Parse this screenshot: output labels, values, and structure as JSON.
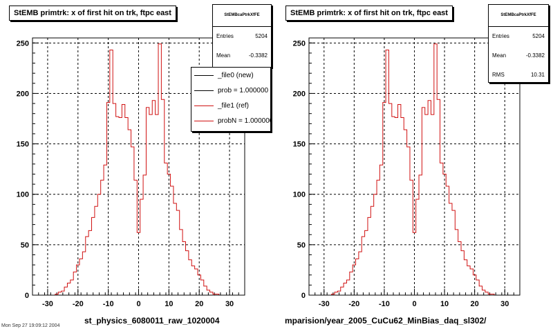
{
  "panels": [
    {
      "title": "StEMB primtrk: x of first hit on trk, ftpc east",
      "stats": {
        "name": "StEMBcaPtrkXfFE",
        "entries_label": "Entries",
        "entries": "5204",
        "mean_label": "Mean",
        "mean": "-0.3382"
      },
      "legend": [
        {
          "label": "_file0 (new)",
          "color": "#000000"
        },
        {
          "label": "prob = 1.000000",
          "color": "#000000"
        },
        {
          "label": "_file1 (ref)",
          "color": "#d01010"
        },
        {
          "label": "probN = 1.000000",
          "color": "#d01010"
        }
      ],
      "caption": "st_physics_6080011_raw_1020004"
    },
    {
      "title": "StEMB primtrk: x of first hit on trk, ftpc east",
      "stats": {
        "name": "StEMBcaPtrkXfFE",
        "entries_label": "Entries",
        "entries": "5204",
        "mean_label": "Mean",
        "mean": "-0.3382",
        "rms_label": "RMS",
        "rms": "10.31"
      },
      "caption": "mparision/year_2005_CuCu62_MinBias_daq_sl302/"
    }
  ],
  "corner_text": "Mon Sep 27 19:09:12 2004",
  "colors": {
    "histogram": "#d01010",
    "frame": "#000000",
    "grid": "#000000"
  },
  "chart_data": {
    "type": "line",
    "x_tick_labels": [
      "-30",
      "-20",
      "-10",
      "0",
      "10",
      "20",
      "30"
    ],
    "y_tick_labels": [
      "0",
      "50",
      "100",
      "150",
      "200",
      "250"
    ],
    "xlim": [
      -35,
      35
    ],
    "ylim": [
      0,
      255
    ],
    "grid": true,
    "bin_width": 1,
    "x": [
      -31,
      -30,
      -29,
      -28,
      -27,
      -26,
      -25,
      -24,
      -23,
      -22,
      -21,
      -20,
      -19,
      -18,
      -17,
      -16,
      -15,
      -14,
      -13,
      -12,
      -11,
      -10,
      -9,
      -8,
      -7,
      -6,
      -5,
      -4,
      -3,
      -2,
      -1,
      0,
      1,
      2,
      3,
      4,
      5,
      6,
      7,
      8,
      9,
      10,
      11,
      12,
      13,
      14,
      15,
      16,
      17,
      18,
      19,
      20,
      21,
      22,
      23,
      24,
      25,
      26,
      27,
      28,
      29,
      30,
      31
    ],
    "values": [
      0,
      0,
      0,
      0,
      1,
      3,
      4,
      8,
      12,
      15,
      23,
      30,
      36,
      43,
      58,
      64,
      77,
      88,
      100,
      114,
      129,
      191,
      243,
      190,
      177,
      176,
      189,
      176,
      164,
      147,
      114,
      62,
      95,
      119,
      186,
      179,
      193,
      179,
      249,
      194,
      131,
      120,
      108,
      91,
      84,
      65,
      53,
      44,
      35,
      29,
      26,
      20,
      15,
      9,
      5,
      3,
      1,
      1,
      0,
      0,
      0,
      0,
      0
    ]
  }
}
